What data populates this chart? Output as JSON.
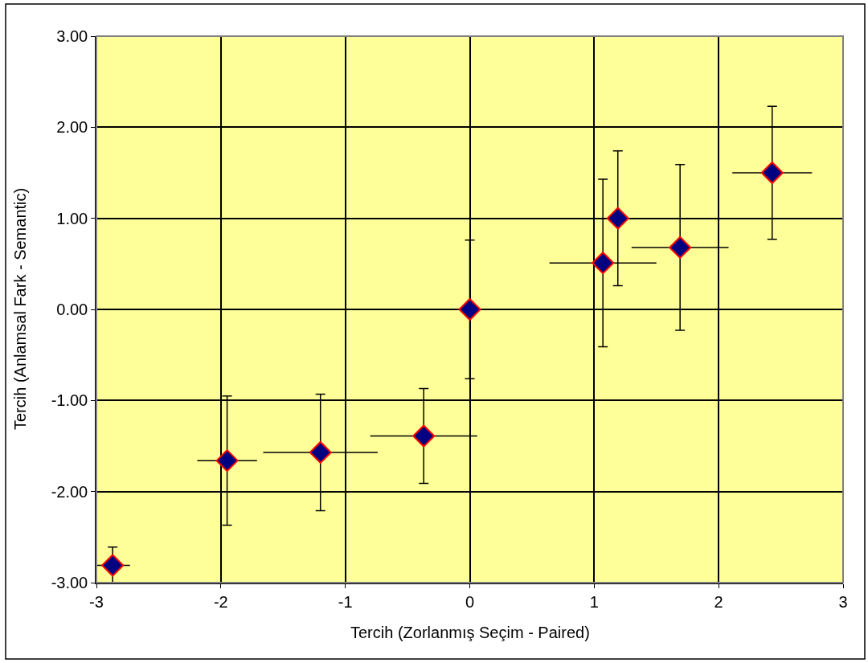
{
  "chart_data": {
    "type": "scatter",
    "xlabel": "Tercih (Zorlanmış Seçim - Paired)",
    "ylabel": "Tercih (Anlamsal Fark - Semantic)",
    "x": [
      -2.87,
      -1.95,
      -1.2,
      -0.37,
      0.0,
      1.07,
      1.19,
      1.69,
      2.43
    ],
    "series": [
      {
        "color": "#000080",
        "values": [
          -2.81,
          -1.66,
          -1.57,
          -1.39,
          0.0,
          0.51,
          1.0,
          0.68,
          1.5
        ],
        "errors": [
          0.2,
          0.71,
          0.64,
          0.52,
          0.76,
          0.92,
          0.74,
          0.91,
          0.73
        ],
        "xerrors": [
          0.14,
          0.24,
          0.46,
          0.43,
          0.5,
          0.43,
          0.37,
          0.39,
          0.32
        ]
      }
    ],
    "marker": "diamond",
    "xlim": [
      -3,
      3
    ],
    "xticks": [
      -3,
      -2,
      -1,
      0,
      1,
      2,
      3
    ],
    "ylim": [
      -3,
      3
    ],
    "yticks": [
      {
        "value": -3,
        "label": "-3.00"
      },
      {
        "value": -2,
        "label": "-2.00"
      },
      {
        "value": -1,
        "label": "-1.00"
      },
      {
        "value": 0,
        "label": "0.00"
      },
      {
        "value": 1,
        "label": "1.00"
      },
      {
        "value": 2,
        "label": "2.00"
      },
      {
        "value": 3,
        "label": "3.00"
      }
    ],
    "grid": true
  }
}
